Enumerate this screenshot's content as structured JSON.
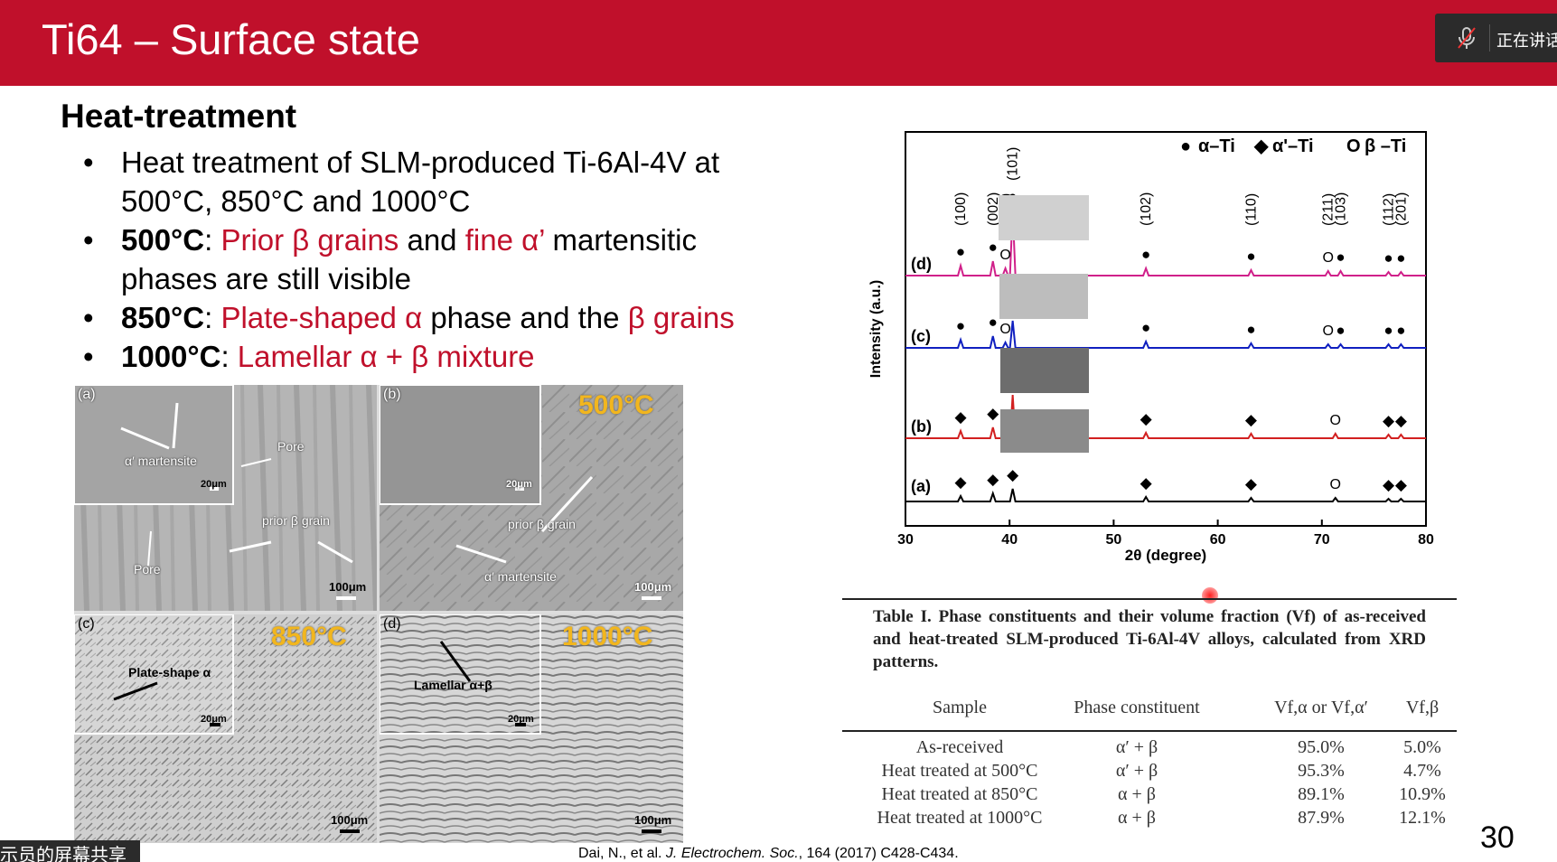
{
  "header": {
    "title": "Ti64 – Surface state",
    "meeting_label": "正在讲话"
  },
  "subhead": "Heat-treatment",
  "bullets": {
    "b1_line1": "Heat treatment of SLM-produced Ti-6Al-4V at",
    "b1_line2": "500°C, 850°C and 1000°C",
    "b2_bold": "500°C",
    "b2_colon": ": ",
    "b2_red1": "Prior β grains",
    "b2_mid": " and ",
    "b2_red2": "fine α’",
    "b2_tail": " martensitic",
    "b2_line2": "phases are still visible",
    "b3_bold": "850°C",
    "b3_colon": ": ",
    "b3_red1": "Plate-shaped α",
    "b3_mid": " phase and the ",
    "b3_red2": "β grains",
    "b4_bold": "1000°C",
    "b4_colon": ": ",
    "b4_red": "Lamellar α + β mixture"
  },
  "micrographs": {
    "a": {
      "label": "(a)",
      "ann1": "α′ martensite",
      "ann2": "Pore",
      "ann3": "prior β grain",
      "ann4": "Pore",
      "inset_scale": "20μm",
      "scale": "100μm"
    },
    "b": {
      "label": "(b)",
      "temp": "500°C",
      "ann1": "prior β grain",
      "ann2": "α′ martensite",
      "inset_scale": "20μm",
      "scale": "100μm"
    },
    "c": {
      "label": "(c)",
      "temp": "850°C",
      "ann1": "Plate-shape α",
      "inset_scale": "20μm",
      "scale": "100μm"
    },
    "d": {
      "label": "(d)",
      "temp": "1000°C",
      "ann1": "Lamellar α+β",
      "inset_scale": "20μm",
      "scale": "100μm"
    }
  },
  "chart_data": {
    "type": "line",
    "xlabel": "2θ (degree)",
    "ylabel": "Intensity (a.u.)",
    "xlim": [
      30,
      80
    ],
    "xticks": [
      30,
      40,
      50,
      60,
      70,
      80
    ],
    "legend": [
      {
        "symbol": "●",
        "label": "α–Ti"
      },
      {
        "symbol": "◆",
        "label": "α'–Ti"
      },
      {
        "symbol": "O",
        "label": "β –Ti"
      }
    ],
    "peak_labels": [
      "(100)",
      "(002)",
      "(110)",
      "(101)",
      "(102)",
      "(110)",
      "(211)",
      "(103)",
      "(112)",
      "(201)"
    ],
    "peak_positions": [
      35.3,
      38.4,
      39.6,
      40.3,
      53.1,
      63.2,
      70.6,
      71.8,
      76.4,
      77.6
    ],
    "series": [
      {
        "name": "(a)",
        "color": "#000000",
        "peaks": [
          [
            35.3,
            6
          ],
          [
            38.4,
            9
          ],
          [
            40.3,
            14
          ],
          [
            53.1,
            5
          ],
          [
            63.2,
            4
          ],
          [
            71.3,
            4
          ],
          [
            76.4,
            3
          ],
          [
            77.6,
            3
          ]
        ]
      },
      {
        "name": "(b)",
        "color": "#d22020",
        "peaks": [
          [
            35.3,
            8
          ],
          [
            38.4,
            12
          ],
          [
            40.3,
            48
          ],
          [
            53.1,
            6
          ],
          [
            63.2,
            5
          ],
          [
            71.3,
            5
          ],
          [
            76.4,
            4
          ],
          [
            77.6,
            4
          ]
        ]
      },
      {
        "name": "(c)",
        "color": "#1020c0",
        "peaks": [
          [
            35.3,
            9
          ],
          [
            38.4,
            13
          ],
          [
            39.6,
            6
          ],
          [
            40.3,
            30
          ],
          [
            53.1,
            7
          ],
          [
            63.2,
            5
          ],
          [
            70.6,
            4
          ],
          [
            71.8,
            4
          ],
          [
            76.4,
            4
          ],
          [
            77.6,
            4
          ]
        ]
      },
      {
        "name": "(d)",
        "color": "#d0208a",
        "peaks": [
          [
            35.3,
            11
          ],
          [
            38.4,
            16
          ],
          [
            39.6,
            8
          ],
          [
            40.3,
            72
          ],
          [
            53.1,
            8
          ],
          [
            63.2,
            6
          ],
          [
            70.6,
            5
          ],
          [
            71.8,
            5
          ],
          [
            76.4,
            4
          ],
          [
            77.6,
            4
          ]
        ]
      }
    ]
  },
  "table": {
    "caption": "Table I. Phase constituents and their volume fraction (Vf) of as-received and heat-treated SLM-produced Ti-6Al-4V alloys, calculated from XRD patterns.",
    "headers": [
      "Sample",
      "Phase constituent",
      "Vf,α or Vf,α′",
      "Vf,β"
    ],
    "rows": [
      [
        "As-received",
        "α′ + β",
        "95.0%",
        "5.0%"
      ],
      [
        "Heat treated at 500°C",
        "α′ + β",
        "95.3%",
        "4.7%"
      ],
      [
        "Heat treated at 850°C",
        "α + β",
        "89.1%",
        "10.9%"
      ],
      [
        "Heat treated at 1000°C",
        "α + β",
        "87.9%",
        "12.1%"
      ]
    ]
  },
  "citation": {
    "authors": "Dai, N., et al. ",
    "journal": "J. Electrochem. Soc.",
    "rest": ", 164 (2017) C428-C434."
  },
  "page_number": "30",
  "share_label": "示员的屏幕共享"
}
